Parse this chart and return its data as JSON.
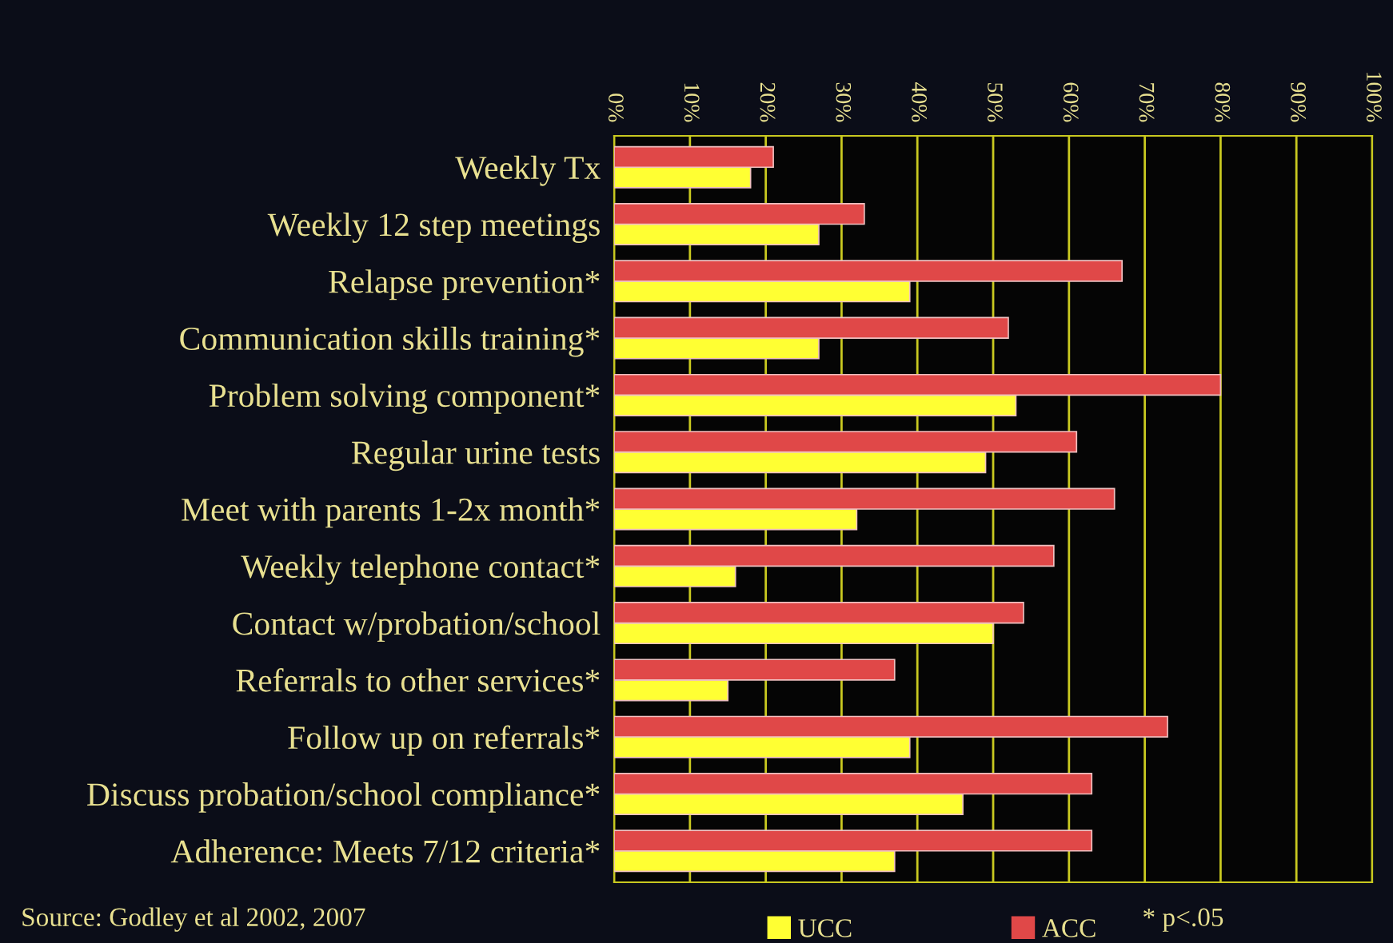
{
  "chart_data": {
    "type": "bar",
    "orientation": "horizontal",
    "categories": [
      "Weekly Tx",
      "Weekly 12 step meetings",
      "Relapse prevention*",
      "Communication skills training*",
      "Problem solving component*",
      "Regular urine tests",
      "Meet with parents 1-2x month*",
      "Weekly telephone contact*",
      "Contact w/probation/school",
      "Referrals to other services*",
      "Follow up on referrals*",
      "Discuss probation/school compliance*",
      "Adherence: Meets 7/12 criteria*"
    ],
    "series": [
      {
        "name": "UCC",
        "color": "#ffff33",
        "values": [
          18,
          27,
          39,
          27,
          53,
          49,
          32,
          16,
          50,
          15,
          39,
          46,
          37
        ]
      },
      {
        "name": "ACC",
        "color": "#e04848",
        "values": [
          21,
          33,
          67,
          52,
          80,
          61,
          66,
          58,
          54,
          37,
          73,
          63,
          63
        ]
      }
    ],
    "xlim": [
      0,
      100
    ],
    "xticks": [
      {
        "value": 0,
        "label": "0%"
      },
      {
        "value": 10,
        "label": "10%"
      },
      {
        "value": 20,
        "label": "20%"
      },
      {
        "value": 30,
        "label": "30%"
      },
      {
        "value": 40,
        "label": "40%"
      },
      {
        "value": 50,
        "label": "50%"
      },
      {
        "value": 60,
        "label": "60%"
      },
      {
        "value": 70,
        "label": "70%"
      },
      {
        "value": 80,
        "label": "80%"
      },
      {
        "value": 90,
        "label": "90%"
      },
      {
        "value": 100,
        "label": "100%"
      }
    ],
    "grid": "x",
    "legend": "bottom",
    "annotations": [
      "Source: Godley et al 2002, 2007",
      "* p<.05"
    ]
  }
}
